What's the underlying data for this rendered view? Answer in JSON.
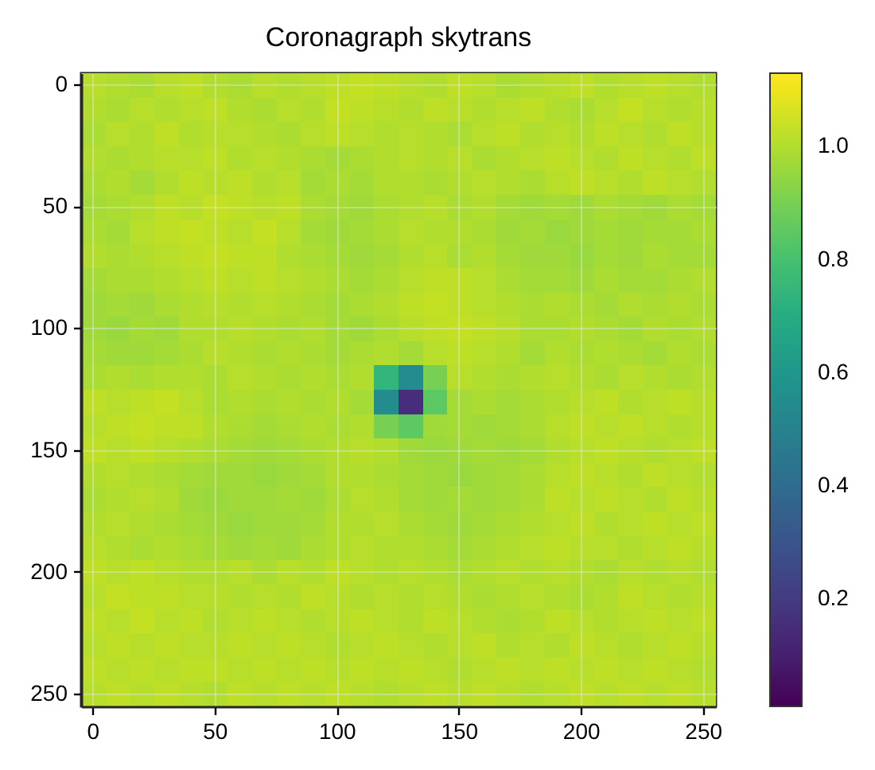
{
  "chart_data": {
    "type": "heatmap",
    "title": "Coronagraph skytrans",
    "categories": [
      "0",
      null,
      null,
      null,
      null,
      "50",
      null,
      null,
      null,
      null,
      "100",
      null,
      null,
      null,
      null,
      "150",
      null,
      null,
      null,
      null,
      "200",
      null,
      null,
      null,
      null,
      "250"
    ],
    "y_categories": [
      "0",
      null,
      null,
      null,
      null,
      "50",
      null,
      null,
      null,
      null,
      "100",
      null,
      null,
      null,
      null,
      "150",
      null,
      null,
      null,
      null,
      "200",
      null,
      null,
      null,
      null,
      "250"
    ],
    "clim": [
      0.01,
      1.13
    ],
    "cticks": [
      0.2,
      0.4,
      0.6,
      0.8,
      {
        "value": 1,
        "label": "1.0"
      }
    ],
    "grid": true,
    "cells": [
      [
        1.01,
        1.0,
        0.99,
        1.01,
        1.02,
        1.0,
        0.99,
        1.01,
        1.0,
        1.01,
        1.02,
        1.03,
        1.02,
        1.01,
        1.0,
        1.02,
        1.01,
        0.99,
        1.0,
        1.01,
        1.02,
        1.0,
        1.01,
        1.02,
        1.01,
        1.0
      ],
      [
        1.0,
        0.99,
        1.01,
        1.0,
        1.01,
        1.02,
        1.0,
        0.99,
        1.01,
        1.0,
        1.03,
        1.02,
        1.01,
        1.0,
        1.02,
        1.01,
        1.0,
        1.01,
        1.02,
        1.0,
        0.99,
        1.01,
        1.03,
        1.01,
        1.0,
        1.01
      ],
      [
        0.99,
        1.01,
        1.0,
        1.02,
        1.0,
        1.01,
        1.01,
        1.0,
        0.99,
        1.01,
        1.02,
        1.01,
        1.0,
        1.01,
        1.0,
        0.99,
        1.01,
        1.02,
        1.0,
        1.01,
        1.0,
        1.02,
        1.01,
        1.0,
        1.02,
        1.01
      ],
      [
        1.0,
        0.99,
        1.0,
        1.01,
        1.01,
        1.02,
        1.0,
        1.01,
        1.0,
        0.99,
        0.98,
        0.99,
        1.0,
        1.01,
        1.0,
        1.01,
        0.99,
        1.0,
        1.01,
        1.02,
        1.01,
        1.0,
        1.02,
        1.01,
        1.0,
        1.02
      ],
      [
        0.99,
        1.0,
        0.98,
        1.0,
        1.02,
        1.01,
        1.02,
        1.0,
        1.01,
        0.98,
        0.99,
        0.98,
        1.0,
        1.0,
        0.99,
        1.0,
        1.01,
        1.0,
        0.99,
        1.01,
        1.02,
        1.01,
        1.0,
        1.02,
        1.01,
        1.0
      ],
      [
        0.98,
        0.99,
        1.0,
        1.02,
        1.01,
        1.03,
        1.02,
        1.01,
        1.02,
        0.99,
        0.98,
        0.97,
        0.99,
        1.0,
        1.01,
        0.99,
        1.0,
        0.98,
        0.97,
        0.98,
        0.97,
        0.99,
        0.98,
        0.97,
        0.99,
        0.98
      ],
      [
        0.99,
        0.98,
        1.01,
        1.02,
        1.03,
        1.02,
        1.01,
        1.03,
        1.01,
        0.98,
        0.97,
        0.98,
        0.99,
        1.01,
        1.0,
        1.0,
        0.99,
        0.97,
        0.98,
        0.96,
        0.97,
        0.98,
        0.97,
        0.98,
        0.98,
        0.99
      ],
      [
        1.0,
        0.99,
        1.0,
        1.01,
        1.02,
        1.03,
        1.02,
        1.02,
        1.0,
        0.99,
        0.98,
        0.97,
        0.98,
        1.0,
        1.01,
        0.99,
        1.0,
        0.98,
        0.97,
        0.97,
        0.96,
        0.98,
        0.97,
        0.99,
        0.98,
        0.98
      ],
      [
        0.98,
        0.99,
        0.99,
        1.0,
        1.01,
        1.02,
        1.01,
        1.02,
        1.01,
        1.0,
        0.99,
        0.98,
        0.99,
        1.01,
        1.02,
        1.02,
        1.01,
        0.99,
        0.98,
        0.98,
        0.97,
        0.99,
        0.98,
        0.98,
        0.99,
        1.0
      ],
      [
        0.97,
        0.98,
        0.97,
        0.99,
        1.0,
        1.01,
        1.0,
        1.01,
        1.0,
        0.99,
        0.98,
        0.99,
        1.0,
        1.02,
        1.03,
        1.02,
        1.01,
        1.0,
        0.99,
        1.0,
        0.99,
        0.98,
        1.0,
        0.99,
        1.0,
        0.99
      ],
      [
        0.97,
        0.96,
        0.98,
        0.97,
        1.0,
        1.0,
        1.01,
        1.0,
        0.99,
        1.0,
        0.98,
        0.97,
        0.99,
        1.01,
        1.02,
        1.03,
        1.02,
        1.01,
        0.99,
        0.99,
        1.0,
        0.99,
        0.98,
        1.0,
        0.99,
        1.0
      ],
      [
        0.98,
        0.97,
        0.97,
        0.98,
        0.99,
        1.01,
        1.0,
        0.99,
        1.0,
        0.99,
        0.98,
        0.99,
        1.0,
        0.98,
        1.01,
        1.02,
        1.01,
        1.0,
        0.98,
        1.0,
        0.99,
        1.0,
        0.99,
        0.98,
        1.0,
        0.99
      ],
      [
        0.99,
        1.0,
        0.99,
        1.0,
        1.0,
        0.99,
        1.01,
        1.0,
        0.99,
        1.0,
        0.99,
        1.0,
        0.75,
        0.55,
        0.9,
        1.01,
        1.0,
        0.99,
        1.0,
        1.01,
        1.0,
        0.99,
        1.01,
        1.0,
        0.99,
        1.0
      ],
      [
        1.02,
        1.01,
        1.02,
        1.03,
        1.01,
        0.99,
        1.0,
        0.99,
        1.0,
        0.99,
        1.0,
        0.98,
        0.55,
        0.15,
        0.85,
        0.98,
        0.99,
        0.98,
        0.99,
        1.0,
        1.01,
        1.02,
        1.0,
        1.01,
        1.02,
        1.01
      ],
      [
        1.01,
        1.02,
        1.03,
        1.02,
        1.02,
        1.0,
        0.99,
        0.98,
        0.99,
        1.0,
        0.99,
        1.0,
        0.9,
        0.85,
        0.97,
        0.98,
        0.97,
        0.98,
        0.99,
        1.01,
        1.02,
        1.01,
        1.02,
        1.01,
        1.0,
        1.01
      ],
      [
        1.02,
        1.01,
        1.02,
        1.01,
        1.0,
        0.99,
        0.98,
        0.97,
        0.98,
        0.99,
        1.0,
        1.01,
        1.0,
        0.97,
        0.96,
        0.97,
        0.98,
        0.97,
        0.98,
        1.0,
        1.01,
        1.02,
        1.01,
        1.0,
        1.01,
        1.02
      ],
      [
        1.0,
        1.01,
        1.0,
        0.99,
        0.98,
        0.97,
        0.97,
        0.96,
        0.97,
        0.98,
        1.0,
        1.0,
        0.99,
        0.98,
        0.97,
        0.96,
        0.97,
        0.98,
        0.99,
        1.01,
        1.02,
        1.01,
        1.0,
        1.02,
        1.01,
        1.0
      ],
      [
        0.99,
        1.0,
        1.01,
        1.0,
        0.97,
        0.96,
        0.97,
        0.97,
        0.98,
        0.97,
        0.99,
        1.01,
        1.0,
        0.98,
        0.97,
        0.98,
        0.97,
        0.98,
        0.99,
        1.02,
        1.01,
        1.02,
        1.01,
        1.0,
        1.02,
        1.01
      ],
      [
        1.0,
        1.01,
        1.0,
        0.99,
        0.98,
        0.97,
        0.96,
        0.97,
        0.97,
        0.98,
        1.0,
        1.0,
        1.01,
        0.99,
        0.98,
        0.97,
        0.98,
        0.99,
        1.0,
        1.01,
        1.02,
        1.0,
        1.01,
        1.02,
        1.01,
        1.02
      ],
      [
        1.01,
        1.0,
        0.99,
        1.0,
        0.99,
        0.98,
        0.97,
        0.98,
        0.97,
        0.99,
        1.0,
        1.01,
        1.0,
        1.0,
        0.99,
        0.98,
        0.99,
        1.0,
        1.01,
        1.02,
        1.01,
        1.01,
        1.0,
        1.01,
        1.02,
        1.01
      ],
      [
        1.02,
        1.01,
        1.02,
        1.01,
        1.0,
        1.0,
        1.01,
        0.99,
        1.01,
        1.0,
        1.02,
        1.01,
        1.0,
        1.01,
        1.0,
        0.99,
        1.0,
        1.01,
        1.0,
        1.01,
        1.0,
        0.99,
        1.01,
        1.0,
        1.01,
        1.0
      ],
      [
        1.01,
        1.03,
        1.02,
        1.02,
        1.01,
        1.01,
        1.0,
        1.01,
        1.0,
        1.02,
        1.01,
        1.0,
        1.01,
        1.0,
        1.01,
        1.0,
        0.99,
        1.0,
        1.01,
        1.0,
        0.99,
        1.0,
        1.02,
        1.01,
        1.0,
        1.01
      ],
      [
        1.02,
        1.01,
        1.03,
        1.01,
        1.02,
        1.0,
        1.01,
        1.02,
        1.01,
        1.0,
        1.01,
        1.02,
        1.01,
        1.0,
        1.02,
        1.01,
        1.0,
        0.99,
        1.0,
        1.02,
        1.01,
        1.0,
        1.01,
        1.02,
        1.01,
        1.02
      ],
      [
        1.01,
        1.02,
        1.01,
        1.02,
        1.01,
        1.01,
        1.02,
        1.01,
        1.02,
        1.01,
        1.0,
        1.01,
        1.02,
        1.01,
        1.0,
        1.01,
        1.02,
        1.0,
        1.01,
        1.0,
        1.02,
        1.01,
        1.0,
        1.01,
        1.02,
        1.01
      ],
      [
        1.02,
        1.01,
        1.02,
        1.01,
        1.02,
        1.02,
        1.01,
        1.02,
        1.01,
        1.02,
        1.01,
        1.02,
        1.01,
        1.02,
        1.01,
        1.0,
        1.01,
        1.02,
        1.01,
        1.02,
        1.01,
        1.02,
        1.01,
        1.02,
        1.01,
        1.0
      ],
      [
        1.01,
        1.02,
        1.01,
        1.02,
        1.01,
        1.0,
        1.02,
        1.01,
        1.02,
        1.01,
        1.02,
        1.01,
        1.0,
        1.01,
        1.02,
        1.01,
        1.02,
        1.01,
        1.0,
        1.01,
        1.02,
        1.01,
        1.02,
        1.01,
        1.02,
        1.01
      ]
    ]
  }
}
